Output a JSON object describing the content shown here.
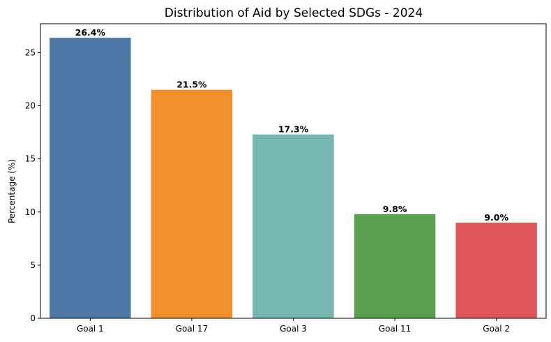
{
  "chart_data": {
    "type": "bar",
    "title": "Distribution of Aid by Selected SDGs - 2024",
    "xlabel": "",
    "ylabel": "Percentage (%)",
    "categories": [
      "Goal 1",
      "Goal 17",
      "Goal 3",
      "Goal 11",
      "Goal 2"
    ],
    "values": [
      26.4,
      21.5,
      17.3,
      9.8,
      9.0
    ],
    "data_labels": [
      "26.4%",
      "21.5%",
      "17.3%",
      "9.8%",
      "9.0%"
    ],
    "colors": [
      "#4e79a7",
      "#f28e2b",
      "#76b7b2",
      "#59a14f",
      "#e15759"
    ],
    "ylim": [
      0,
      27.72
    ],
    "yticks": [
      0,
      5,
      10,
      15,
      20,
      25
    ],
    "grid": false,
    "legend": "none"
  }
}
